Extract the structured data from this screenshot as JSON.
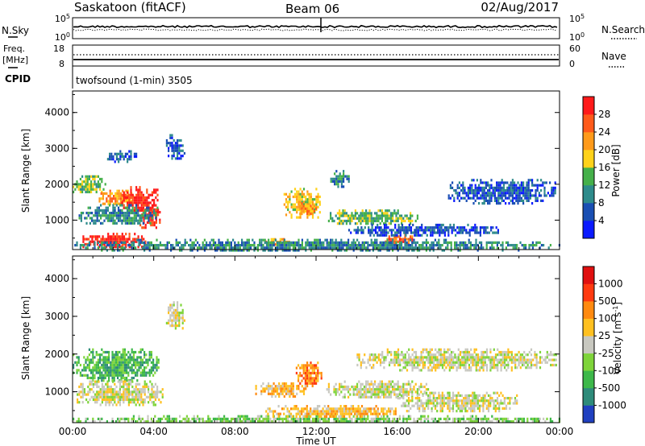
{
  "header": {
    "station": "Saskatoon (fitACF)",
    "beam": "Beam 06",
    "date": "02/Aug/2017"
  },
  "noise_panel": {
    "label_left": "N.Sky",
    "left_ticks": [
      "10^5",
      "10^0"
    ],
    "right_ticks": [
      "10^5",
      "10^0"
    ],
    "label_right": "N.Search"
  },
  "freq_panel": {
    "label_top": "Freq.",
    "label_unit": "[MHz]",
    "left_ticks": [
      "18",
      "8"
    ],
    "right_ticks": [
      "60",
      "0"
    ],
    "label_right": "Nave"
  },
  "cpid": {
    "label": "CPID",
    "value": "twofsound (1-min) 3505"
  },
  "chart_data": [
    {
      "type": "heatmap",
      "name": "power",
      "ylabel": "Slant Range [km]",
      "yticks": [
        "4000",
        "3000",
        "2000",
        "1000"
      ],
      "ylim": [
        180,
        4600
      ],
      "xlim": [
        0,
        24
      ],
      "colorbar": {
        "label": "Power [dB]",
        "ticks": [
          "28",
          "24",
          "20",
          "16",
          "12",
          "8",
          "4"
        ],
        "colors": [
          "#0a1aff",
          "#1a4fb3",
          "#2e8b8b",
          "#45b04a",
          "#ffd21a",
          "#ff9a1a",
          "#ff5a1a",
          "#ff1a1a"
        ]
      },
      "regions": [
        {
          "t": [
            0.0,
            1.6
          ],
          "r": [
            1750,
            2250
          ],
          "level": 3
        },
        {
          "t": [
            1.2,
            3.0
          ],
          "r": [
            1450,
            1850
          ],
          "level": 5
        },
        {
          "t": [
            2.4,
            4.2
          ],
          "r": [
            1250,
            1950
          ],
          "level": 7
        },
        {
          "t": [
            3.3,
            4.3
          ],
          "r": [
            800,
            1400
          ],
          "level": 7
        },
        {
          "t": [
            0.4,
            3.6
          ],
          "r": [
            250,
            650
          ],
          "level": 7
        },
        {
          "t": [
            0.3,
            4.2
          ],
          "r": [
            900,
            1450
          ],
          "level": 2
        },
        {
          "t": [
            4.6,
            5.5
          ],
          "r": [
            2700,
            3400
          ],
          "level": 1
        },
        {
          "t": [
            1.7,
            3.1
          ],
          "r": [
            2650,
            2950
          ],
          "level": 1
        },
        {
          "t": [
            10.4,
            12.2
          ],
          "r": [
            1100,
            1900
          ],
          "level": 4
        },
        {
          "t": [
            11.0,
            12.0
          ],
          "r": [
            1150,
            1500
          ],
          "level": 5
        },
        {
          "t": [
            12.5,
            17.0
          ],
          "r": [
            900,
            1300
          ],
          "level": 3
        },
        {
          "t": [
            12.7,
            13.6
          ],
          "r": [
            1950,
            2400
          ],
          "level": 2
        },
        {
          "t": [
            15.3,
            16.7
          ],
          "r": [
            300,
            650
          ],
          "level": 6
        },
        {
          "t": [
            13.5,
            21.0
          ],
          "r": [
            600,
            900
          ],
          "level": 1
        },
        {
          "t": [
            18.5,
            23.8
          ],
          "r": [
            1500,
            2150
          ],
          "level": 1
        },
        {
          "t": [
            9.5,
            10.8
          ],
          "r": [
            350,
            500
          ],
          "level": 5
        },
        {
          "t": [
            0.0,
            24.0
          ],
          "r": [
            180,
            480
          ],
          "level": 2
        }
      ]
    },
    {
      "type": "heatmap",
      "name": "velocity",
      "ylabel": "Slant Range [km]",
      "yticks": [
        "4000",
        "3000",
        "2000",
        "1000"
      ],
      "ylim": [
        180,
        4600
      ],
      "xlim": [
        0,
        24
      ],
      "xticks": [
        "00:00",
        "04:00",
        "08:00",
        "12:00",
        "16:00",
        "20:00",
        "00:00"
      ],
      "xlabel": "Time UT",
      "colorbar": {
        "label": "Velocity [m s^-1]",
        "ticks": [
          "1000",
          "500",
          "100",
          "25",
          "-25",
          "-100",
          "-500",
          "-1000"
        ],
        "colors": [
          "#2040c0",
          "#2e8b7a",
          "#3db84a",
          "#7ed43a",
          "#c8c8c0",
          "#ffc020",
          "#ff8a10",
          "#ff3a10",
          "#e01010"
        ]
      },
      "regions": [
        {
          "t": [
            0.0,
            4.2
          ],
          "r": [
            1300,
            2150
          ],
          "level": 2
        },
        {
          "t": [
            0.2,
            4.4
          ],
          "r": [
            650,
            1300
          ],
          "level": 4
        },
        {
          "t": [
            4.6,
            5.5
          ],
          "r": [
            2700,
            3400
          ],
          "level": 4
        },
        {
          "t": [
            11.0,
            12.3
          ],
          "r": [
            1150,
            1800
          ],
          "level": 6
        },
        {
          "t": [
            12.5,
            17.5
          ],
          "r": [
            850,
            1300
          ],
          "level": 4
        },
        {
          "t": [
            14.0,
            23.8
          ],
          "r": [
            1600,
            2150
          ],
          "level": 4
        },
        {
          "t": [
            16.0,
            22.0
          ],
          "r": [
            500,
            1000
          ],
          "level": 4
        },
        {
          "t": [
            9.0,
            11.5
          ],
          "r": [
            900,
            1250
          ],
          "level": 5
        },
        {
          "t": [
            0.0,
            24.0
          ],
          "r": [
            180,
            380
          ],
          "level": 3
        },
        {
          "t": [
            9.5,
            16.0
          ],
          "r": [
            350,
            650
          ],
          "level": 5
        }
      ]
    }
  ]
}
